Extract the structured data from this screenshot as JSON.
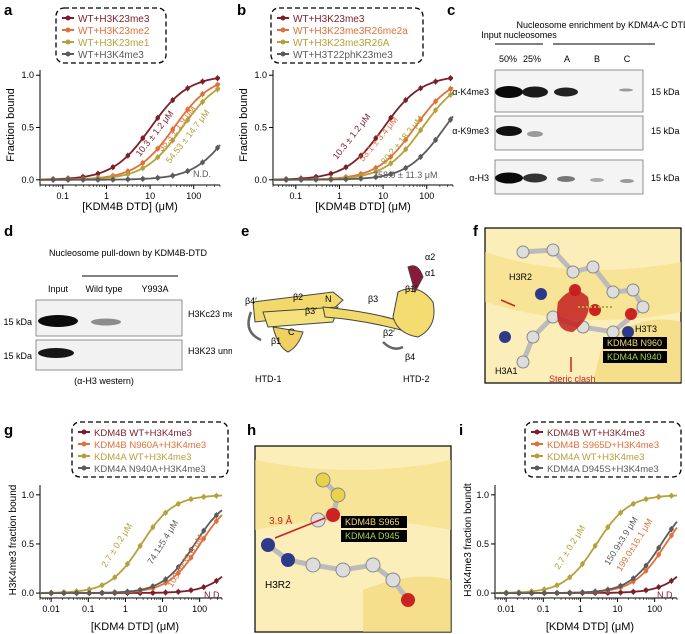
{
  "panels": {
    "a": {
      "letter": "a",
      "legend": [
        "WT+H3K23me3",
        "WT+H3K23me2",
        "WT+H3K23me1",
        "WT+H3K4me3"
      ],
      "ylabel": "Fraction bound",
      "xlabel": "[KDM4B DTD] (μM)",
      "xticks": [
        "0.1",
        "1",
        "10",
        "100"
      ],
      "yticks": [
        "0.0",
        "0.5",
        "1.0"
      ],
      "annotations": [
        "10.3 ± 1.2 μM",
        "35.3 ± 1.9 μM",
        "54.53 ± 14.7 μM",
        "N.D."
      ]
    },
    "b": {
      "letter": "b",
      "legend": [
        "WT+H3K23me3",
        "WT+H3K23me3R26me2a",
        "WT+H3K23me3R26A",
        "WT+H3T22phK23me3"
      ],
      "ylabel": "Fraction bound",
      "xlabel": "[KDM4B DTD] (μM)",
      "xticks": [
        "0.1",
        "1",
        "10",
        "100"
      ],
      "yticks": [
        "0.0",
        "0.5",
        "1.0"
      ],
      "annotations": [
        "10.3 ± 1.2 μM",
        "53.1 ± 3.4 μM",
        "80.2 ± 18.3 μM",
        "258.9 ± 11.3 μM"
      ]
    },
    "c": {
      "letter": "c",
      "header_input": "Input nucleosomes",
      "header_enrich": "Nucleosome enrichment by KDM4A-C DTD",
      "lanes": [
        "50%",
        "25%",
        "A",
        "B",
        "C"
      ],
      "rows": [
        "α-K4me3",
        "α-K9me3",
        "α-H3"
      ],
      "mw": [
        "15 kDa",
        "15 kDa",
        "15 kDa"
      ]
    },
    "d": {
      "letter": "d",
      "header": "Nucleosome pull-down by KDM4B-DTD",
      "lanes": [
        "Input",
        "Wild type",
        "Y993A"
      ],
      "mw": [
        "15 kDa",
        "15 kDa"
      ],
      "row_labels": [
        "H3Kc23 me3",
        "H3K23 unmod"
      ],
      "footer": "(α-H3 western)"
    },
    "e": {
      "letter": "e",
      "labels": [
        "α2",
        "α1",
        "β4′",
        "β2",
        "N",
        "β3′",
        "C",
        "β1",
        "β3",
        "β1′",
        "β2′",
        "β4",
        "HTD-1",
        "HTD-2"
      ]
    },
    "f": {
      "letter": "f",
      "labels": [
        "H3R2",
        "H3T3",
        "H3A1"
      ],
      "box1": "KDM4B N960",
      "box2": "KDM4A N940",
      "clash": "Steric clash"
    },
    "g": {
      "letter": "g",
      "legend": [
        "KDM4B WT+H3K4me3",
        "KDM4B N960A+H3K4me3",
        "KDM4A WT+H3K4me3",
        "KDM4A N940A+H3K4me3"
      ],
      "ylabel": "H3K4me3 fraction bound",
      "xlabel": "[KDM4 DTD] (μM)",
      "xticks": [
        "0.01",
        "0.1",
        "1",
        "10",
        "100"
      ],
      "yticks": [
        "0.0",
        "0.5",
        "1.0"
      ],
      "annotations": [
        "2.7 ± 0.2 μM",
        "74.1±5.4 μM",
        "103.4±35.8 μM",
        "N.D."
      ]
    },
    "h": {
      "letter": "h",
      "distance": "3.9 Å",
      "box1": "KDM4B S965",
      "box2": "KDM4A D945",
      "label": "H3R2"
    },
    "i": {
      "letter": "i",
      "legend": [
        "KDM4B WT+H3K4me3",
        "KDM4B S965D+H3K4me3",
        "KDM4A WT+H3K4me3",
        "KDM4A D945S+H3K4me3"
      ],
      "ylabel": "H3K4me3 fraction boundt",
      "xlabel": "[KDM4 DTD] (μM)",
      "xticks": [
        "0.01",
        "0.1",
        "1",
        "10",
        "100"
      ],
      "yticks": [
        "0.0",
        "0.5",
        "1.0"
      ],
      "annotations": [
        "2.7 ± 0.2 μM",
        "150.9±3.9 μM",
        "199.0±16.1 μM",
        "N.D."
      ]
    }
  },
  "colors": {
    "s1": "#7b1f2a",
    "s2": "#e0703a",
    "s3": "#b5a13a",
    "s4": "#5b5b5b",
    "yellow": "#f2d96b",
    "mol_red": "#cc2222",
    "mol_blue": "#2d3a8c"
  },
  "chart_data": [
    {
      "panel": "a",
      "type": "line",
      "xscale": "log",
      "xlim": [
        0.03,
        400
      ],
      "ylim": [
        -0.05,
        1.05
      ],
      "series": [
        {
          "name": "WT+H3K23me3",
          "kd": 10.3
        },
        {
          "name": "WT+H3K23me2",
          "kd": 35.3
        },
        {
          "name": "WT+H3K23me1",
          "kd": 54.53
        },
        {
          "name": "WT+H3K4me3",
          "kd": 800
        }
      ]
    },
    {
      "panel": "b",
      "type": "line",
      "xscale": "log",
      "xlim": [
        0.03,
        400
      ],
      "ylim": [
        -0.05,
        1.05
      ],
      "series": [
        {
          "name": "WT+H3K23me3",
          "kd": 10.3
        },
        {
          "name": "WT+H3K23me3R26me2a",
          "kd": 53.1
        },
        {
          "name": "WT+H3K23me3R26A",
          "kd": 80.2
        },
        {
          "name": "WT+H3T22phK23me3",
          "kd": 258.9
        }
      ]
    },
    {
      "panel": "g",
      "type": "line",
      "xscale": "log",
      "xlim": [
        0.005,
        400
      ],
      "ylim": [
        -0.05,
        1.1
      ],
      "series": [
        {
          "name": "KDM4B WT+H3K4me3",
          "kd": 2000
        },
        {
          "name": "KDM4B N960A+H3K4me3",
          "kd": 103.4
        },
        {
          "name": "KDM4A WT+H3K4me3",
          "kd": 2.7
        },
        {
          "name": "KDM4A N940A+H3K4me3",
          "kd": 74.1
        }
      ]
    },
    {
      "panel": "i",
      "type": "line",
      "xscale": "log",
      "xlim": [
        0.005,
        400
      ],
      "ylim": [
        -0.05,
        1.1
      ],
      "series": [
        {
          "name": "KDM4B WT+H3K4me3",
          "kd": 2000
        },
        {
          "name": "KDM4B S965D+H3K4me3",
          "kd": 199.0
        },
        {
          "name": "KDM4A WT+H3K4me3",
          "kd": 2.7
        },
        {
          "name": "KDM4A D945S+H3K4me3",
          "kd": 150.9
        }
      ]
    }
  ]
}
